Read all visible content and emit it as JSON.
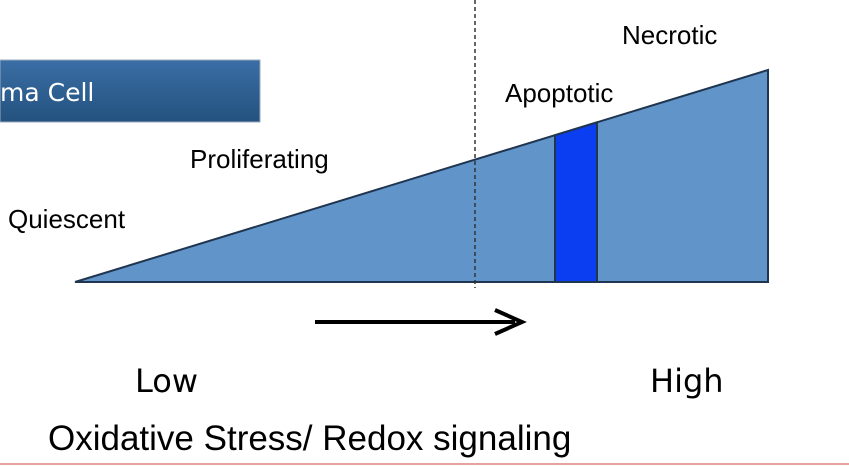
{
  "banner": "ma Cell",
  "stages": [
    "Quiescent",
    "Proliferating",
    "Apoptotic",
    "Necrotic"
  ],
  "axis": {
    "low": "Low",
    "high": "High",
    "title": "Oxidative Stress/ Redox signaling"
  }
}
